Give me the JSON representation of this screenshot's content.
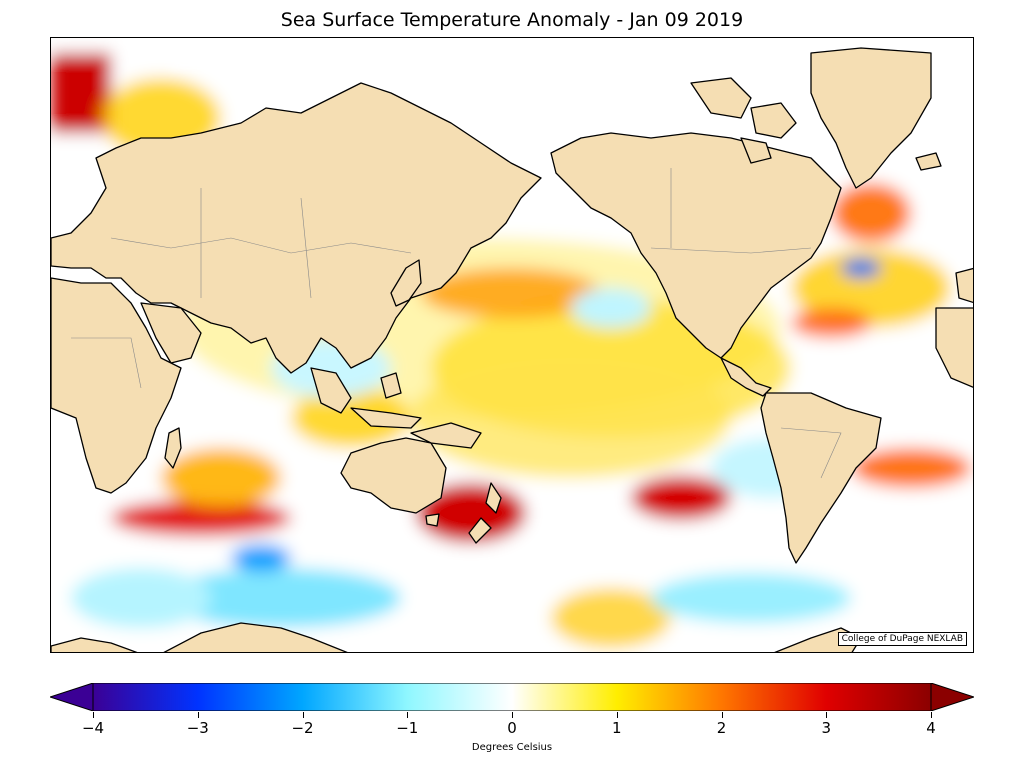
{
  "title": "Sea Surface Temperature Anomaly - Jan 09 2019",
  "credit": "College of DuPage NEXLAB",
  "colorbar": {
    "units_label": "Degrees Celsius",
    "min": -4,
    "max": 4,
    "extend": "both",
    "ticks": [
      "−4",
      "−3",
      "−2",
      "−1",
      "0",
      "1",
      "2",
      "3",
      "4"
    ],
    "colors": [
      "#3b0095",
      "#0033ff",
      "#00a6ff",
      "#8ff7ff",
      "#ffffff",
      "#ffee00",
      "#ff7700",
      "#e00000",
      "#8b0000"
    ]
  },
  "map": {
    "land_color": "#f5deb3",
    "projection": "mercator, pacific-centered",
    "anomaly_regions": [
      {
        "region": "North Atlantic / Greenland Sea",
        "sign": "warm",
        "strength": "strong"
      },
      {
        "region": "Tasman Sea east of Australia",
        "sign": "warm",
        "strength": "strong"
      },
      {
        "region": "South Pacific mid-latitudes",
        "sign": "warm",
        "strength": "strong"
      },
      {
        "region": "Southern Indian Ocean band",
        "sign": "warm",
        "strength": "strong"
      },
      {
        "region": "Equatorial Pacific",
        "sign": "warm",
        "strength": "moderate"
      },
      {
        "region": "Southern Ocean near Antarctica",
        "sign": "cool",
        "strength": "moderate"
      }
    ]
  }
}
